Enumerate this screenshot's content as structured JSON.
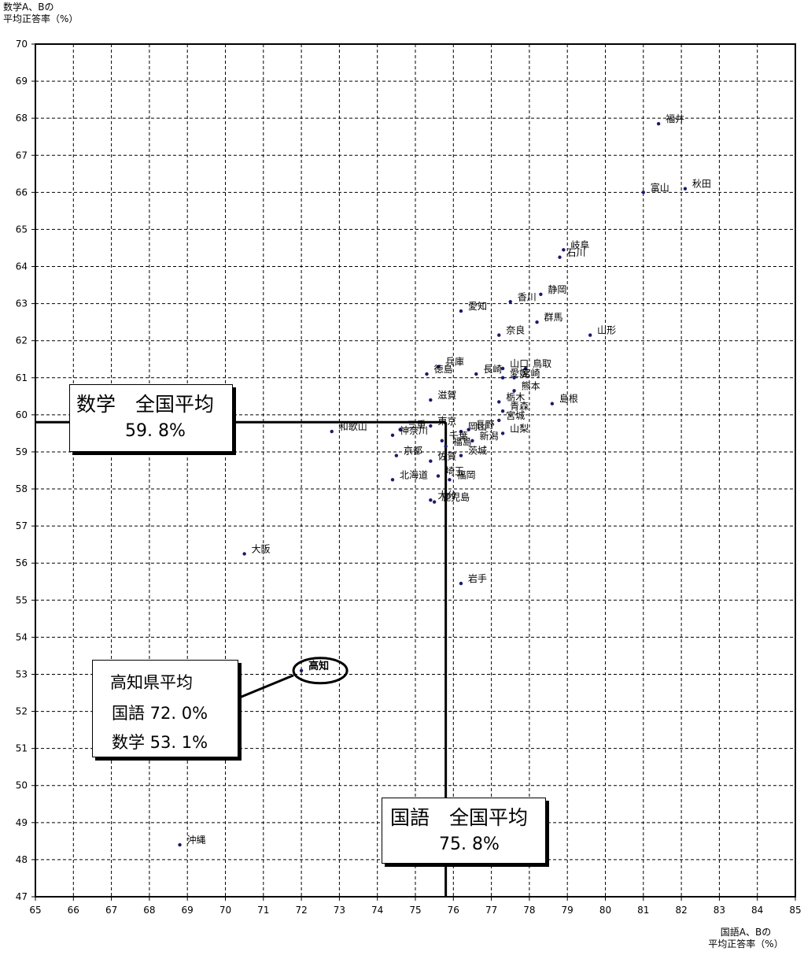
{
  "chart_data": {
    "type": "scatter",
    "ylabel_lines": [
      "数学A、Bの",
      "平均正答率（%）"
    ],
    "xlabel_lines": [
      "国語A、Bの",
      "平均正答率（%）"
    ],
    "xlim": [
      65,
      85
    ],
    "ylim": [
      47,
      70
    ],
    "xticks": [
      "65",
      "66",
      "67",
      "68",
      "69",
      "70",
      "71",
      "72",
      "73",
      "74",
      "75",
      "76",
      "77",
      "78",
      "79",
      "80",
      "81",
      "82",
      "83",
      "84",
      "85"
    ],
    "yticks": [
      "47",
      "48",
      "49",
      "50",
      "51",
      "52",
      "53",
      "54",
      "55",
      "56",
      "57",
      "58",
      "59",
      "60",
      "61",
      "62",
      "63",
      "64",
      "65",
      "66",
      "67",
      "68",
      "69",
      "70"
    ],
    "grid": true,
    "points": [
      {
        "label": "福井",
        "x": 81.4,
        "y": 67.85
      },
      {
        "label": "富山",
        "x": 81.0,
        "y": 66.0
      },
      {
        "label": "秋田",
        "x": 82.1,
        "y": 66.1
      },
      {
        "label": "岐阜",
        "x": 78.9,
        "y": 64.45
      },
      {
        "label": "石川",
        "x": 78.8,
        "y": 64.25
      },
      {
        "label": "静岡",
        "x": 78.3,
        "y": 63.25
      },
      {
        "label": "香川",
        "x": 77.5,
        "y": 63.05
      },
      {
        "label": "愛知",
        "x": 76.2,
        "y": 62.8
      },
      {
        "label": "群馬",
        "x": 78.2,
        "y": 62.5
      },
      {
        "label": "山形",
        "x": 79.6,
        "y": 62.15
      },
      {
        "label": "奈良",
        "x": 77.2,
        "y": 62.15
      },
      {
        "label": "兵庫",
        "x": 75.6,
        "y": 61.3
      },
      {
        "label": "山口",
        "x": 77.3,
        "y": 61.25
      },
      {
        "label": "鳥取",
        "x": 77.9,
        "y": 61.25
      },
      {
        "label": "長崎",
        "x": 76.6,
        "y": 61.1
      },
      {
        "label": "徳島",
        "x": 75.3,
        "y": 61.1
      },
      {
        "label": "愛媛",
        "x": 77.3,
        "y": 61.0
      },
      {
        "label": "宮崎",
        "x": 77.6,
        "y": 61.0
      },
      {
        "label": "熊本",
        "x": 77.6,
        "y": 60.65
      },
      {
        "label": "島根",
        "x": 78.6,
        "y": 60.3
      },
      {
        "label": "栃木",
        "x": 77.2,
        "y": 60.35
      },
      {
        "label": "滋賀",
        "x": 75.4,
        "y": 60.4
      },
      {
        "label": "青森",
        "x": 77.3,
        "y": 60.1
      },
      {
        "label": "三重",
        "x": 74.6,
        "y": 59.6
      },
      {
        "label": "宮城",
        "x": 77.2,
        "y": 59.85
      },
      {
        "label": "東京",
        "x": 75.4,
        "y": 59.7
      },
      {
        "label": "長野",
        "x": 76.4,
        "y": 59.6
      },
      {
        "label": "和歌山",
        "x": 72.8,
        "y": 59.55
      },
      {
        "label": "岡山",
        "x": 76.2,
        "y": 59.55
      },
      {
        "label": "神奈川",
        "x": 74.4,
        "y": 59.45
      },
      {
        "label": "山梨",
        "x": 77.3,
        "y": 59.5
      },
      {
        "label": "新潟",
        "x": 76.5,
        "y": 59.3
      },
      {
        "label": "千葉",
        "x": 75.7,
        "y": 59.3
      },
      {
        "label": "福島",
        "x": 75.8,
        "y": 59.15
      },
      {
        "label": "京都",
        "x": 74.5,
        "y": 58.9
      },
      {
        "label": "茨城",
        "x": 76.2,
        "y": 58.9
      },
      {
        "label": "佐賀",
        "x": 75.4,
        "y": 58.75
      },
      {
        "label": "北海道",
        "x": 74.4,
        "y": 58.25
      },
      {
        "label": "埼玉",
        "x": 75.6,
        "y": 58.35
      },
      {
        "label": "福岡",
        "x": 75.9,
        "y": 58.25
      },
      {
        "label": "大分",
        "x": 75.4,
        "y": 57.7
      },
      {
        "label": "鹿児島",
        "x": 75.5,
        "y": 57.65
      },
      {
        "label": "大阪",
        "x": 70.5,
        "y": 56.25
      },
      {
        "label": "岩手",
        "x": 76.2,
        "y": 55.45
      },
      {
        "label": "高知",
        "x": 72.0,
        "y": 53.1,
        "highlight": true
      },
      {
        "label": "沖縄",
        "x": 68.8,
        "y": 48.4
      }
    ],
    "reference_lines": {
      "x_average": 75.8,
      "y_average": 59.8
    },
    "annotations": {
      "math_avg": {
        "line1": "数学　全国平均",
        "line2": "59. 8%"
      },
      "jp_avg": {
        "line1": "国語　全国平均",
        "line2": "75. 8%"
      },
      "kochi": {
        "line1": "高知県平均",
        "line2": "国語 72. 0%",
        "line3": "数学 53. 1%"
      }
    },
    "colors": {
      "point": "#1a1a6e",
      "line": "#000000",
      "grid": "#000000"
    }
  }
}
